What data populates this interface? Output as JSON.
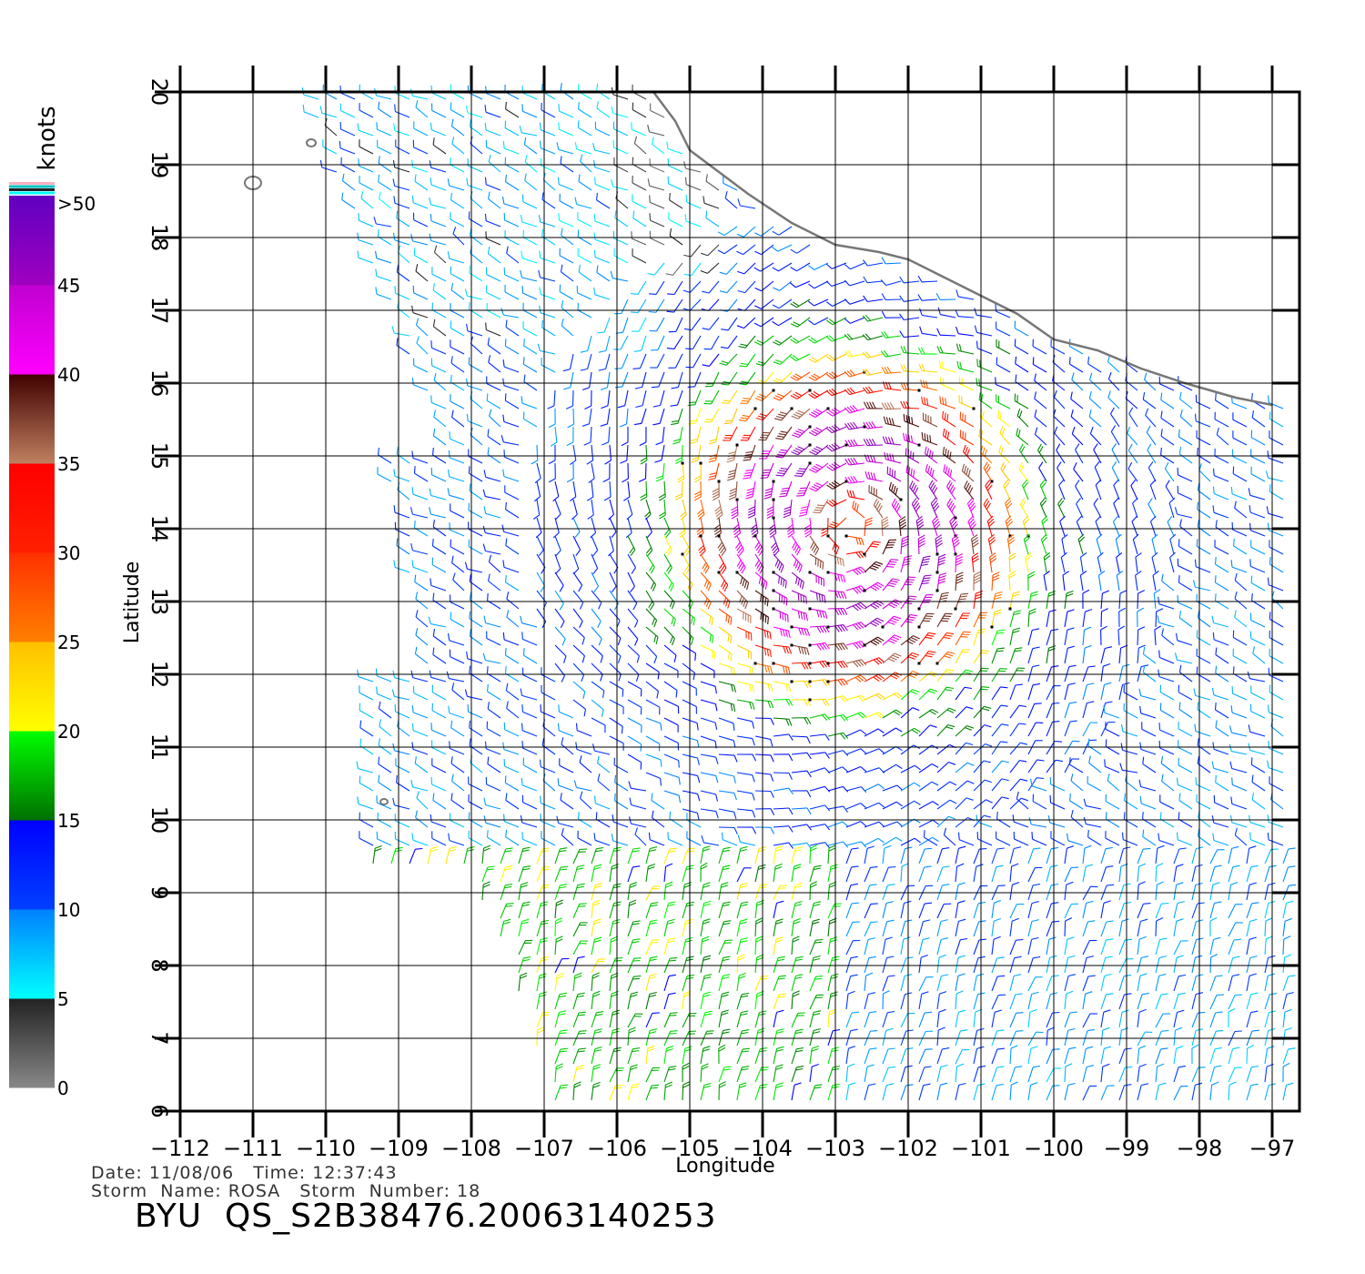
{
  "chart_data": {
    "type": "scatter",
    "xlabel": "Longitude",
    "ylabel": "Latitude",
    "xlim": [
      -112,
      -96.5
    ],
    "ylim": [
      6,
      20
    ],
    "x_ticks": [
      -112,
      -111,
      -110,
      -109,
      -108,
      -107,
      -106,
      -105,
      -104,
      -103,
      -102,
      -101,
      -100,
      -99,
      -98,
      -97
    ],
    "y_ticks": [
      6,
      7,
      8,
      9,
      10,
      11,
      12,
      13,
      14,
      15,
      16,
      17,
      18,
      19,
      20
    ],
    "grid": true,
    "storm_center": [
      -102.8,
      14.0
    ],
    "colorbar": {
      "title": "knots",
      "labels": [
        "0",
        "5",
        "10",
        "15",
        "20",
        "25",
        "30",
        "35",
        "40",
        "45",
        ">50"
      ],
      "bins": [
        {
          "min": 0,
          "max": 5,
          "colors": [
            "#888888",
            "#222222"
          ]
        },
        {
          "min": 5,
          "max": 10,
          "colors": [
            "#00ffff",
            "#0080ff"
          ]
        },
        {
          "min": 10,
          "max": 15,
          "colors": [
            "#0040ff",
            "#0000ff"
          ]
        },
        {
          "min": 15,
          "max": 20,
          "colors": [
            "#007000",
            "#00ff00"
          ]
        },
        {
          "min": 20,
          "max": 25,
          "colors": [
            "#ffff00",
            "#ffc000"
          ]
        },
        {
          "min": 25,
          "max": 30,
          "colors": [
            "#ff8000",
            "#ff3000"
          ]
        },
        {
          "min": 30,
          "max": 35,
          "colors": [
            "#ff2000",
            "#ff0000"
          ]
        },
        {
          "min": 35,
          "max": 40,
          "colors": [
            "#c08060",
            "#400000"
          ]
        },
        {
          "min": 40,
          "max": 45,
          "colors": [
            "#ff00ff",
            "#c000d0"
          ]
        },
        {
          "min": 45,
          "max": 50,
          "colors": [
            "#a000c0",
            "#6000c0"
          ]
        }
      ]
    }
  },
  "footer": {
    "line1": "Date: 11/08/06   Time: 12:37:43",
    "line2": "Storm  Name: ROSA   Storm  Number: 18",
    "file_id": "BYU  QS_S2B38476.20063140253"
  }
}
